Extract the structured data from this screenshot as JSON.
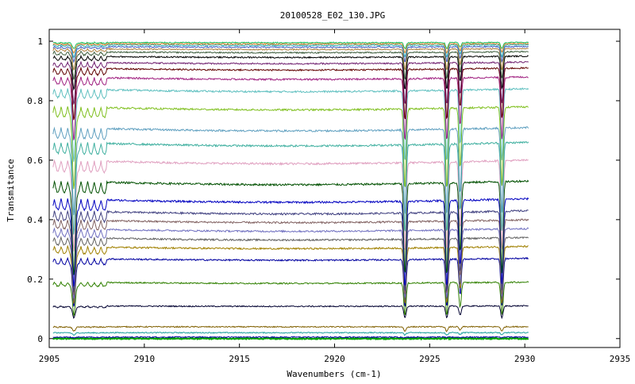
{
  "chart_data": {
    "type": "line",
    "title": "20100528_E02_130.JPG",
    "xlabel": "Wavenumbers (cm-1)",
    "ylabel": "Transmitance",
    "xlim": [
      2905,
      2935
    ],
    "ylim": [
      -0.03,
      1.04
    ],
    "x_ticks": [
      2905,
      2910,
      2915,
      2920,
      2925,
      2930,
      2935
    ],
    "y_ticks": [
      0,
      0.2,
      0.4,
      0.6,
      0.8,
      1
    ],
    "x_tick_labels": [
      "2905",
      "2910",
      "2915",
      "2920",
      "2925",
      "2930",
      "2935"
    ],
    "y_tick_labels": [
      "0",
      "0.2",
      "0.4",
      "0.6",
      "0.8",
      "1"
    ],
    "x_range_data": [
      2905.2,
      2930.2
    ],
    "grid": false,
    "legend": "none",
    "absorption_lines": [
      {
        "x": 2906.3,
        "rel_depth": 1.0,
        "width": 0.07
      },
      {
        "x": 2923.7,
        "rel_depth": 1.0,
        "width": 0.06
      },
      {
        "x": 2925.9,
        "rel_depth": 1.0,
        "width": 0.06
      },
      {
        "x": 2926.6,
        "rel_depth": 0.75,
        "width": 0.06
      },
      {
        "x": 2928.8,
        "rel_depth": 1.0,
        "width": 0.06
      }
    ],
    "series": [
      {
        "baseline": 0.0,
        "dip": 0.0,
        "color": "#00a000"
      },
      {
        "baseline": 0.005,
        "dip": 0.002,
        "color": "#0000a0"
      },
      {
        "baseline": 0.02,
        "dip": 0.008,
        "color": "#20a0a0"
      },
      {
        "baseline": 0.04,
        "dip": 0.015,
        "color": "#806000"
      },
      {
        "baseline": 0.11,
        "dip": 0.04,
        "color": "#000030"
      },
      {
        "baseline": 0.19,
        "dip": 0.11,
        "color": "#308000"
      },
      {
        "baseline": 0.27,
        "dip": 0.16,
        "color": "#0000a0"
      },
      {
        "baseline": 0.31,
        "dip": 0.19,
        "color": "#a08000"
      },
      {
        "baseline": 0.34,
        "dip": 0.21,
        "color": "#606060"
      },
      {
        "baseline": 0.37,
        "dip": 0.23,
        "color": "#7070c0"
      },
      {
        "baseline": 0.4,
        "dip": 0.25,
        "color": "#806060"
      },
      {
        "baseline": 0.43,
        "dip": 0.27,
        "color": "#404080"
      },
      {
        "baseline": 0.47,
        "dip": 0.29,
        "color": "#0000c0"
      },
      {
        "baseline": 0.53,
        "dip": 0.31,
        "color": "#005000"
      },
      {
        "baseline": 0.6,
        "dip": 0.3,
        "color": "#e0a0c0"
      },
      {
        "baseline": 0.66,
        "dip": 0.3,
        "color": "#40b0a0"
      },
      {
        "baseline": 0.71,
        "dip": 0.29,
        "color": "#60a0c0"
      },
      {
        "baseline": 0.78,
        "dip": 0.27,
        "color": "#80c020"
      },
      {
        "baseline": 0.84,
        "dip": 0.24,
        "color": "#60c0c0"
      },
      {
        "baseline": 0.88,
        "dip": 0.21,
        "color": "#a02080"
      },
      {
        "baseline": 0.91,
        "dip": 0.17,
        "color": "#600000"
      },
      {
        "baseline": 0.93,
        "dip": 0.14,
        "color": "#702070"
      },
      {
        "baseline": 0.95,
        "dip": 0.11,
        "color": "#000000"
      },
      {
        "baseline": 0.965,
        "dip": 0.09,
        "color": "#406040"
      },
      {
        "baseline": 0.975,
        "dip": 0.07,
        "color": "#b08040"
      },
      {
        "baseline": 0.982,
        "dip": 0.05,
        "color": "#4060c0"
      },
      {
        "baseline": 0.988,
        "dip": 0.04,
        "color": "#30b0b0"
      },
      {
        "baseline": 0.992,
        "dip": 0.03,
        "color": "#e08030"
      },
      {
        "baseline": 0.996,
        "dip": 0.02,
        "color": "#20c060"
      }
    ]
  }
}
